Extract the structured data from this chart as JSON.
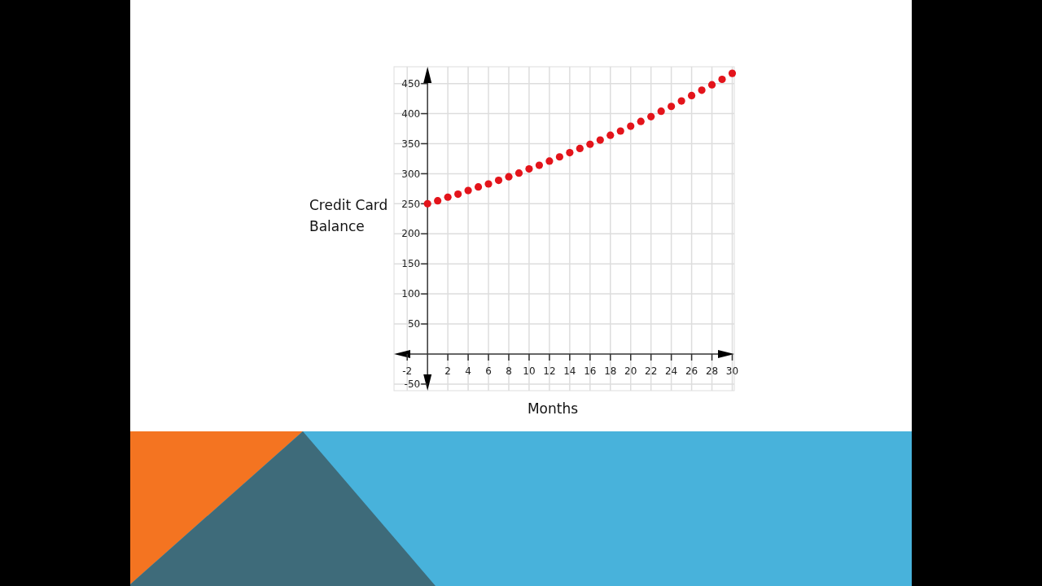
{
  "chart_data": {
    "type": "scatter",
    "xlabel": "Months",
    "ylabel": "Credit Card Balance",
    "x": [
      0,
      1,
      2,
      3,
      4,
      5,
      6,
      7,
      8,
      9,
      10,
      11,
      12,
      13,
      14,
      15,
      16,
      17,
      18,
      19,
      20,
      21,
      22,
      23,
      24,
      25,
      26,
      27,
      28,
      29,
      30
    ],
    "series": [
      {
        "color": "#e3141b",
        "values": [
          250,
          255,
          261,
          266,
          272,
          278,
          283,
          289,
          295,
          301,
          308,
          314,
          321,
          328,
          335,
          342,
          349,
          356,
          364,
          371,
          379,
          387,
          395,
          404,
          412,
          421,
          430,
          439,
          448,
          457,
          467
        ]
      }
    ],
    "xlim": [
      -3.3,
      30.2
    ],
    "ylim": [
      -61,
      478
    ],
    "xticks": [
      -2,
      2,
      4,
      6,
      8,
      10,
      12,
      14,
      16,
      18,
      20,
      22,
      24,
      26,
      28,
      30
    ],
    "yticks": [
      -50,
      50,
      100,
      150,
      200,
      250,
      300,
      350,
      400,
      450
    ],
    "grid": true,
    "marker": "circle"
  }
}
